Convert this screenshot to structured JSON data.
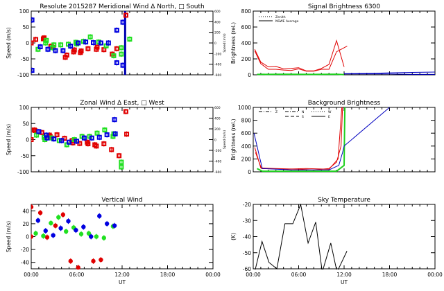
{
  "chart_data": [
    {
      "id": "meridional",
      "type": "scatter",
      "title": "Resolute   2015287     Meridional Wind   Δ North, □ South",
      "xlabel": "",
      "ylabel": "Speed (m/s)",
      "ylabel_right": "Speed (m/s)",
      "xlim": [
        0,
        24
      ],
      "ylim": [
        -100,
        100
      ],
      "yticks": [
        -100,
        -50,
        0,
        50,
        100
      ],
      "yticks_right": [
        -600,
        -400,
        -200,
        0,
        200,
        400,
        600
      ],
      "xticks": [],
      "vline": {
        "x": 12.4,
        "color": "#0000b0"
      },
      "series": [
        {
          "name": "red",
          "color": "#e00000",
          "points": [
            [
              0,
              0
            ],
            [
              0.6,
              11
            ],
            [
              1.6,
              13
            ],
            [
              1.7,
              16
            ],
            [
              2.6,
              -10
            ],
            [
              2.9,
              -14
            ],
            [
              4.5,
              -45
            ],
            [
              4.7,
              -38
            ],
            [
              5.6,
              -28
            ],
            [
              5.7,
              -22
            ],
            [
              6.5,
              -30
            ],
            [
              6.6,
              -25
            ],
            [
              7.5,
              -18
            ],
            [
              8.6,
              -20
            ],
            [
              8.7,
              -13
            ],
            [
              9.6,
              -21
            ],
            [
              10.7,
              -35
            ],
            [
              11.3,
              -18
            ],
            [
              12.5,
              87
            ]
          ]
        },
        {
          "name": "green",
          "color": "#20e020",
          "points": [
            [
              0.9,
              -20
            ],
            [
              1.9,
              0
            ],
            [
              2,
              8
            ],
            [
              2.8,
              -15
            ],
            [
              3,
              -6
            ],
            [
              3.9,
              -6
            ],
            [
              4.9,
              -4
            ],
            [
              5.9,
              2
            ],
            [
              6,
              -3
            ],
            [
              6.9,
              5
            ],
            [
              7.8,
              19
            ],
            [
              8.9,
              3
            ],
            [
              9.9,
              -9
            ],
            [
              10.9,
              -40
            ],
            [
              11.9,
              -15
            ],
            [
              11.9,
              -35
            ],
            [
              13,
              12
            ]
          ]
        },
        {
          "name": "blue",
          "color": "#0000e0",
          "points": [
            [
              0.1,
              72
            ],
            [
              0.1,
              -86
            ],
            [
              1.2,
              -12
            ],
            [
              2.2,
              -20
            ],
            [
              3.2,
              -24
            ],
            [
              4.2,
              -24
            ],
            [
              5.2,
              -10
            ],
            [
              6.2,
              0
            ],
            [
              7.2,
              3
            ],
            [
              8.2,
              1
            ],
            [
              9.2,
              0
            ],
            [
              10.2,
              0
            ],
            [
              11.3,
              40
            ],
            [
              11.3,
              -62
            ],
            [
              12.1,
              65
            ],
            [
              12.1,
              -70
            ]
          ]
        }
      ]
    },
    {
      "id": "zonal",
      "type": "scatter",
      "title": "Zonal Wind      Δ East, □ West",
      "xlabel": "",
      "ylabel": "Speed (m/s)",
      "ylabel_right": "Speed (m/s)",
      "xlim": [
        0,
        24
      ],
      "ylim": [
        -100,
        100
      ],
      "yticks": [
        -100,
        -50,
        0,
        50,
        100
      ],
      "yticks_right": [
        -600,
        -400,
        -200,
        0,
        200,
        400,
        600
      ],
      "xticks": [],
      "series": [
        {
          "name": "red",
          "color": "#e00000",
          "points": [
            [
              0,
              0
            ],
            [
              0.4,
              30
            ],
            [
              0.5,
              28
            ],
            [
              1.4,
              22
            ],
            [
              2.4,
              14
            ],
            [
              2.5,
              10
            ],
            [
              3.4,
              15
            ],
            [
              4.4,
              4
            ],
            [
              5.4,
              -3
            ],
            [
              5.5,
              -10
            ],
            [
              6.4,
              -12
            ],
            [
              7.4,
              -8
            ],
            [
              7.5,
              -13
            ],
            [
              8.4,
              -16
            ],
            [
              8.6,
              -20
            ],
            [
              9.6,
              -13
            ],
            [
              10.6,
              -31
            ],
            [
              11.6,
              -50
            ],
            [
              12.5,
              87
            ],
            [
              12.6,
              17
            ]
          ]
        },
        {
          "name": "green",
          "color": "#20e020",
          "points": [
            [
              0.7,
              14
            ],
            [
              1.7,
              7
            ],
            [
              1.8,
              0
            ],
            [
              2.7,
              5
            ],
            [
              3.7,
              -3
            ],
            [
              4.7,
              -16
            ],
            [
              5.7,
              0
            ],
            [
              6.7,
              10
            ],
            [
              7.7,
              10
            ],
            [
              8.7,
              20
            ],
            [
              9.7,
              30
            ],
            [
              10.8,
              10
            ],
            [
              10.9,
              18
            ],
            [
              11.9,
              -70
            ],
            [
              11.9,
              -85
            ]
          ]
        },
        {
          "name": "blue",
          "color": "#0000e0",
          "points": [
            [
              1,
              25
            ],
            [
              2,
              14
            ],
            [
              2.1,
              5
            ],
            [
              3,
              2
            ],
            [
              4,
              -3
            ],
            [
              5,
              -8
            ],
            [
              6,
              -5
            ],
            [
              7,
              5
            ],
            [
              8,
              5
            ],
            [
              9,
              7
            ],
            [
              10,
              15
            ],
            [
              11,
              62
            ],
            [
              11.1,
              18
            ]
          ]
        }
      ]
    },
    {
      "id": "vertical",
      "type": "scatter",
      "title": "Vertical Wind",
      "xlabel": "UT",
      "ylabel": "Speed (m/s)",
      "xlim": [
        0,
        24
      ],
      "ylim": [
        -50,
        50
      ],
      "yticks": [
        -40,
        -20,
        0,
        20,
        40
      ],
      "xticks": [
        "00:00",
        "06:00",
        "12:00",
        "18:00",
        "00:00"
      ],
      "series": [
        {
          "name": "red",
          "color": "#e00000",
          "points": [
            [
              0,
              46
            ],
            [
              0,
              0
            ],
            [
              1.2,
              37
            ],
            [
              2.1,
              -1
            ],
            [
              3.2,
              17
            ],
            [
              4.2,
              34
            ],
            [
              5.2,
              -38
            ],
            [
              6.2,
              -48
            ],
            [
              8.2,
              -38
            ],
            [
              9.2,
              -36
            ]
          ]
        },
        {
          "name": "green",
          "color": "#20e020",
          "points": [
            [
              0.6,
              5
            ],
            [
              1.6,
              1
            ],
            [
              2.6,
              21
            ],
            [
              3.6,
              30
            ],
            [
              4.6,
              8
            ],
            [
              5.6,
              14
            ],
            [
              6.6,
              4
            ],
            [
              7.6,
              5
            ],
            [
              8.6,
              0
            ],
            [
              9.6,
              -2
            ],
            [
              10.8,
              16
            ]
          ]
        },
        {
          "name": "blue",
          "color": "#0000e0",
          "points": [
            [
              0.9,
              25
            ],
            [
              1.9,
              9
            ],
            [
              2.9,
              2
            ],
            [
              3.9,
              13
            ],
            [
              4.9,
              24
            ],
            [
              5.9,
              10
            ],
            [
              6.9,
              15
            ],
            [
              7.9,
              0
            ],
            [
              9,
              32
            ],
            [
              10,
              20
            ],
            [
              11,
              17
            ]
          ]
        }
      ]
    },
    {
      "id": "signal",
      "type": "line",
      "title": "Signal Brightness      6300",
      "xlabel": "",
      "ylabel": "Brightness (rel.)",
      "xlim": [
        0,
        24
      ],
      "ylim": [
        0,
        800
      ],
      "yticks": [
        0,
        200,
        400,
        600,
        800
      ],
      "xticks": [],
      "legend": [
        {
          "label": "Zenith",
          "style": "dotted"
        },
        {
          "label": "NSWE Average",
          "style": "solid"
        }
      ],
      "legend_placement": "top-left",
      "series": [
        {
          "name": "red-a",
          "color": "#e00000",
          "points": [
            [
              0.2,
              320
            ],
            [
              1,
              160
            ],
            [
              2,
              100
            ],
            [
              3,
              105
            ],
            [
              4,
              75
            ],
            [
              5,
              80
            ],
            [
              6,
              90
            ],
            [
              7,
              50
            ],
            [
              8,
              50
            ],
            [
              9,
              80
            ],
            [
              10,
              130
            ],
            [
              11,
              430
            ],
            [
              12,
              100
            ]
          ]
        },
        {
          "name": "red-b",
          "color": "#e00000",
          "points": [
            [
              0.2,
              300
            ],
            [
              1,
              140
            ],
            [
              2,
              70
            ],
            [
              3,
              70
            ],
            [
              4,
              60
            ],
            [
              5,
              55
            ],
            [
              6,
              75
            ],
            [
              7,
              45
            ],
            [
              8,
              45
            ],
            [
              9,
              70
            ],
            [
              10,
              70
            ],
            [
              11,
              290
            ],
            [
              12.4,
              360
            ]
          ]
        },
        {
          "name": "green",
          "color": "#20d020",
          "points": [
            [
              0.5,
              5
            ],
            [
              4,
              8
            ],
            [
              8,
              5
            ],
            [
              11,
              8
            ],
            [
              12,
              3
            ]
          ]
        },
        {
          "name": "blue",
          "color": "#0000c0",
          "points": [
            [
              12,
              15
            ],
            [
              16,
              20
            ],
            [
              18,
              25
            ],
            [
              21,
              30
            ],
            [
              24,
              35
            ]
          ]
        },
        {
          "name": "blue-low",
          "color": "#0000c0",
          "points": [
            [
              12,
              10
            ],
            [
              18,
              10
            ],
            [
              21,
              5
            ],
            [
              24,
              5
            ]
          ]
        }
      ]
    },
    {
      "id": "background",
      "type": "line",
      "title": "Background Brightness",
      "xlabel": "",
      "ylabel": "Brightness (rel.)",
      "xlim": [
        0,
        24
      ],
      "ylim": [
        0,
        1000
      ],
      "yticks": [
        0,
        200,
        400,
        600,
        800,
        1000
      ],
      "xticks": [],
      "legend": [
        {
          "label": "Z",
          "style": "dashdot"
        },
        {
          "label": "N",
          "style": "dashdot"
        },
        {
          "label": "S",
          "style": "dashed"
        },
        {
          "label": "W",
          "style": "dotted"
        },
        {
          "label": "E",
          "style": "solid"
        }
      ],
      "legend_placement": "top-left",
      "series": [
        {
          "name": "red",
          "color": "#e00000",
          "points": [
            [
              0.2,
              380
            ],
            [
              1,
              60
            ],
            [
              3,
              50
            ],
            [
              6,
              40
            ],
            [
              8,
              30
            ],
            [
              10,
              50
            ],
            [
              11,
              150
            ],
            [
              11.6,
              400
            ],
            [
              11.8,
              1000
            ]
          ]
        },
        {
          "name": "red-2",
          "color": "#e00000",
          "points": [
            [
              0.3,
              300
            ],
            [
              1.1,
              50
            ],
            [
              4,
              40
            ],
            [
              7,
              50
            ],
            [
              10,
              40
            ],
            [
              11.2,
              200
            ],
            [
              11.7,
              1000
            ]
          ]
        },
        {
          "name": "green",
          "color": "#20d020",
          "points": [
            [
              0.5,
              50
            ],
            [
              1.2,
              10
            ],
            [
              6,
              10
            ],
            [
              11,
              10
            ],
            [
              12,
              100
            ],
            [
              12.1,
              1000
            ]
          ]
        },
        {
          "name": "blue",
          "color": "#0000c0",
          "points": [
            [
              0.1,
              600
            ],
            [
              0.5,
              400
            ],
            [
              0.8,
              250
            ],
            [
              1.2,
              50
            ],
            [
              5,
              30
            ],
            [
              10,
              30
            ],
            [
              11.3,
              100
            ],
            [
              11.8,
              300
            ],
            [
              12,
              400
            ],
            [
              18,
              1000
            ]
          ]
        }
      ]
    },
    {
      "id": "sky",
      "type": "line",
      "title": "Sky Temperature",
      "xlabel": "UT",
      "ylabel": "(K)",
      "xlim": [
        0,
        24
      ],
      "ylim": [
        -60,
        -20
      ],
      "yticks": [
        -60,
        -50,
        -40,
        -30,
        -20
      ],
      "xticks": [
        "00:00",
        "06:00",
        "12:00",
        "18:00",
        "00:00"
      ],
      "series": [
        {
          "name": "black",
          "color": "#000000",
          "points": [
            [
              0.24,
              -61
            ],
            [
              1.16,
              -43
            ],
            [
              2.08,
              -56
            ],
            [
              3.12,
              -60
            ],
            [
              4.19,
              -32
            ],
            [
              5.23,
              -32
            ],
            [
              6.27,
              -20
            ],
            [
              7.25,
              -44
            ],
            [
              8.25,
              -31
            ],
            [
              9.11,
              -62
            ],
            [
              10.24,
              -44
            ],
            [
              11.07,
              -62
            ],
            [
              12.38,
              -49
            ]
          ]
        }
      ]
    }
  ]
}
